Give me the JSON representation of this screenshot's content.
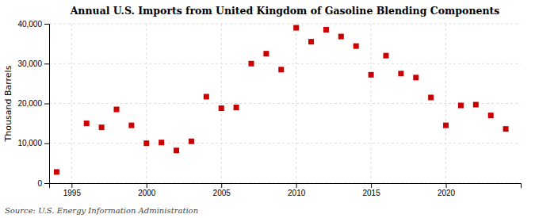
{
  "chart_data": {
    "type": "scatter",
    "title": "Annual U.S. Imports from United Kingdom of Gasoline Blending Components",
    "ylabel": "Thousand Barrels",
    "annotation": "Source: U.S. Energy Information Administration",
    "color": "#cc0000",
    "marker": "square",
    "grid": true,
    "xlim": [
      1993.5,
      2025
    ],
    "xticks": [
      1995,
      2000,
      2005,
      2010,
      2015,
      2020
    ],
    "ylim": [
      0,
      40000
    ],
    "yticks": [
      0,
      {
        "value": 10000,
        "label": "10,000"
      },
      {
        "value": 20000,
        "label": "20,000"
      },
      {
        "value": 30000,
        "label": "30,000"
      },
      {
        "value": 40000,
        "label": "40,000"
      }
    ],
    "x": [
      1994,
      1996,
      1997,
      1998,
      1999,
      2000,
      2001,
      2002,
      2003,
      2004,
      2005,
      2006,
      2007,
      2008,
      2009,
      2010,
      2011,
      2012,
      2013,
      2014,
      2015,
      2016,
      2017,
      2018,
      2019,
      2020,
      2021,
      2022,
      2023,
      2024
    ],
    "values": [
      2800,
      15000,
      14000,
      18500,
      14500,
      10000,
      10200,
      8200,
      10500,
      21700,
      18800,
      19000,
      30000,
      32500,
      28500,
      39000,
      35500,
      38500,
      36800,
      34400,
      27200,
      32000,
      27500,
      26500,
      21500,
      14500,
      19500,
      19700,
      17000,
      13600
    ]
  }
}
